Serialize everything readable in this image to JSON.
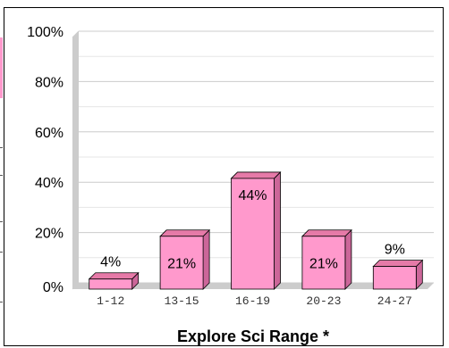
{
  "chart_data": {
    "type": "bar",
    "title": "",
    "xlabel": "Explore Sci Range *",
    "ylabel": "",
    "categories": [
      "1-12",
      "13-15",
      "16-19",
      "20-23",
      "24-27"
    ],
    "values": [
      4,
      21,
      44,
      21,
      9
    ],
    "data_labels": [
      "4%",
      "21%",
      "44%",
      "21%",
      "9%"
    ],
    "ylim": [
      0,
      100
    ],
    "yticks": [
      {
        "value": 0,
        "label": "0%"
      },
      {
        "value": 20,
        "label": "20%"
      },
      {
        "value": 40,
        "label": "40%"
      },
      {
        "value": 60,
        "label": "60%"
      },
      {
        "value": 80,
        "label": "80%"
      },
      {
        "value": 100,
        "label": "100%"
      }
    ],
    "grid": true,
    "legend": "none",
    "colors": {
      "bar_front": "#ff99cc",
      "bar_top": "#e67aa8",
      "bar_side": "#cc6699",
      "wall": "#cccccc",
      "grid": "#cccccc"
    }
  }
}
